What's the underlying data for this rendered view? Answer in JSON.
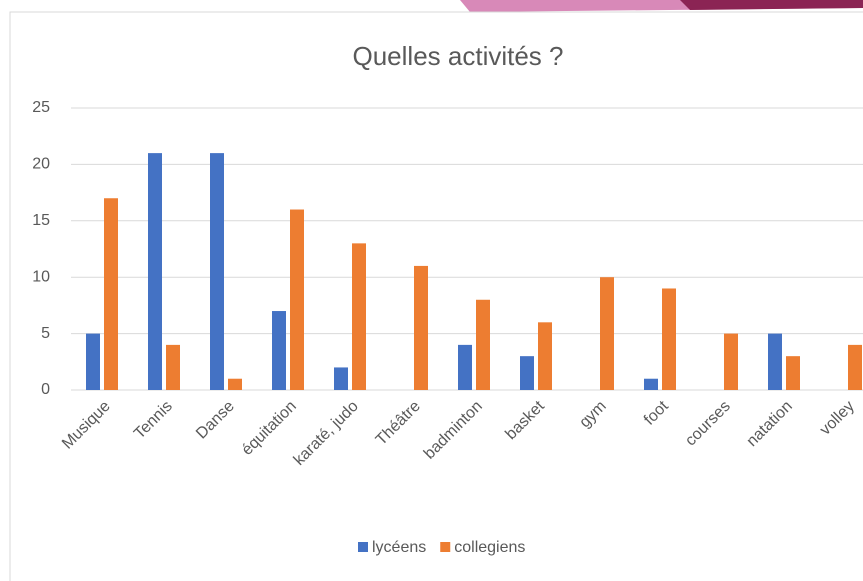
{
  "chart_data": {
    "type": "bar",
    "title": "Quelles activités ?",
    "categories": [
      "Musique",
      "Tennis",
      "Danse",
      "équitation",
      "karaté, judo",
      "Théâtre",
      "badminton",
      "basket",
      "gym",
      "foot",
      "courses",
      "natation",
      "volley"
    ],
    "series": [
      {
        "name": "lycéens",
        "color": "#4472c4",
        "values": [
          5,
          21,
          21,
          7,
          2,
          0,
          4,
          3,
          0,
          1,
          0,
          5,
          0
        ]
      },
      {
        "name": "collegiens",
        "color": "#ed7d31",
        "values": [
          17,
          4,
          1,
          16,
          13,
          11,
          8,
          6,
          10,
          9,
          5,
          3,
          4
        ]
      }
    ],
    "ylim": [
      0,
      25
    ],
    "yticks": [
      0,
      5,
      10,
      15,
      20,
      25
    ],
    "grid": true,
    "legend": "bottom"
  }
}
